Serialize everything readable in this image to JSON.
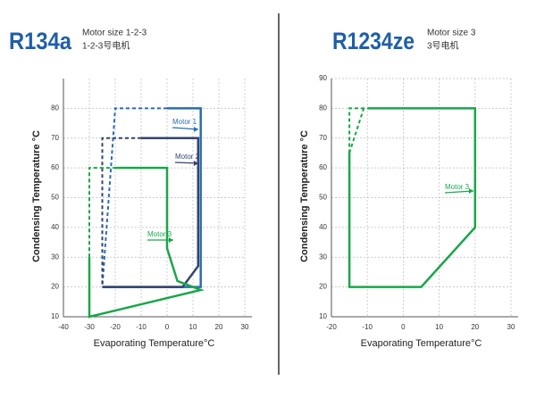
{
  "chart_data": [
    {
      "type": "line",
      "title": "R134a",
      "subtitle": [
        "Motor size 1-2-3",
        "1-2-3号电机"
      ],
      "x_label": "Evaporating Temperature°C",
      "y_label": "Condensing Temperature °C",
      "xlim": [
        -40,
        30
      ],
      "xticks": [
        -40,
        -30,
        -20,
        -10,
        0,
        10,
        20,
        30
      ],
      "ylim": [
        10,
        90
      ],
      "yticks": [
        10,
        20,
        30,
        40,
        50,
        60,
        70,
        80
      ],
      "grid": true,
      "series": [
        {
          "name": "Motor 1",
          "color": "#2a6db5",
          "dashed": false,
          "x": [
            0,
            13,
            13,
            -25
          ],
          "values": [
            80,
            80,
            20,
            20
          ]
        },
        {
          "color": "#2a6db5",
          "dashed": true,
          "x": [
            0,
            -20,
            -25
          ],
          "values": [
            80,
            80,
            20
          ]
        },
        {
          "name": "Motor 2",
          "color": "#34446c",
          "dashed": false,
          "x": [
            -10,
            12,
            12,
            6,
            -25
          ],
          "values": [
            70,
            70,
            27,
            20,
            20
          ]
        },
        {
          "color": "#34446c",
          "dashed": true,
          "x": [
            -10,
            -25,
            -25
          ],
          "values": [
            70,
            70,
            20
          ]
        },
        {
          "name": "Motor 3",
          "color": "#1aa64a",
          "dashed": false,
          "x": [
            -20,
            0,
            0,
            4,
            13,
            -30,
            -30
          ],
          "values": [
            60,
            60,
            33,
            22,
            19,
            10,
            30
          ]
        },
        {
          "color": "#1aa64a",
          "dashed": true,
          "x": [
            -30,
            -30,
            -20
          ],
          "values": [
            30,
            60,
            60
          ]
        }
      ]
    },
    {
      "type": "line",
      "title": "R1234ze",
      "subtitle": [
        "Motor size 3",
        "3号电机"
      ],
      "x_label": "Evaporating Temperature°C",
      "y_label": "Condensing Temperature °C",
      "xlim": [
        -20,
        30
      ],
      "xticks": [
        -20,
        -10,
        0,
        10,
        20,
        30
      ],
      "ylim": [
        10,
        90
      ],
      "yticks": [
        10,
        20,
        30,
        40,
        50,
        60,
        70,
        80,
        90
      ],
      "grid": true,
      "series": [
        {
          "name": "Motor 3",
          "color": "#1aa64a",
          "dashed": false,
          "x": [
            -10,
            20,
            20,
            5,
            -15,
            -15
          ],
          "values": [
            80,
            80,
            40,
            20,
            20,
            65
          ]
        },
        {
          "color": "#1aa64a",
          "dashed": true,
          "x": [
            -15,
            -15,
            -10
          ],
          "values": [
            65,
            80,
            80
          ]
        },
        {
          "color": "#1aa64a",
          "dashed": true,
          "x": [
            -15,
            -11
          ],
          "values": [
            65,
            80
          ]
        }
      ]
    }
  ]
}
